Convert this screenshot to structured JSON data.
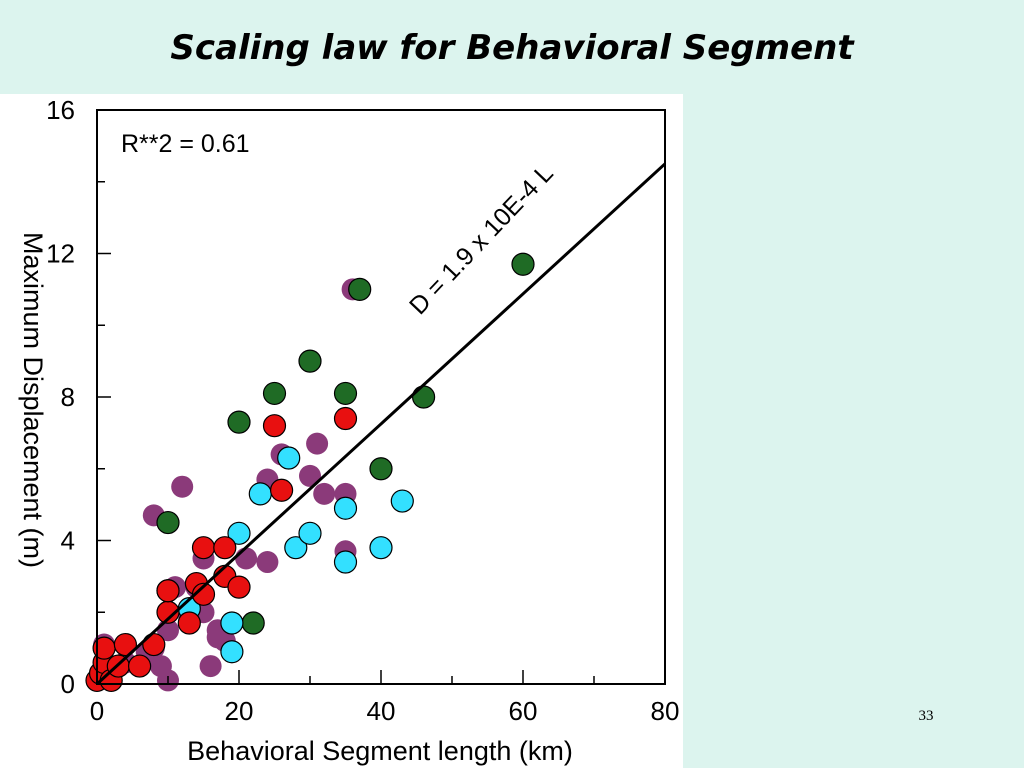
{
  "slide": {
    "title": "Scaling law for Behavioral Segment",
    "page_number": "33"
  },
  "chart_data": {
    "type": "scatter",
    "xlabel": "Behavioral Segment length (km)",
    "ylabel": "Maximum Displacement (m)",
    "xlim": [
      0,
      80
    ],
    "ylim": [
      0,
      16
    ],
    "x_ticks": [
      "0",
      "20",
      "40",
      "60",
      "80"
    ],
    "y_ticks": [
      "0",
      "4",
      "8",
      "12",
      "16"
    ],
    "grid": false,
    "annotations": {
      "r_squared": "R**2 = 0.61",
      "fit_equation": "D = 1.9 x 10E-4 L"
    },
    "fit_line": {
      "x": [
        0,
        80
      ],
      "y": [
        0,
        14.5
      ]
    },
    "series": [
      {
        "color": "#8b3a7a",
        "x": [
          1,
          2,
          4,
          7,
          8,
          9,
          10,
          10,
          11,
          12,
          13,
          14,
          15,
          16,
          17,
          18,
          21,
          24,
          24,
          26,
          30,
          31,
          32,
          35,
          35,
          36,
          10,
          13,
          15,
          17,
          8
        ],
        "y": [
          1.1,
          0.3,
          0.6,
          0.9,
          4.7,
          0.5,
          0.1,
          1.5,
          2.7,
          5.5,
          2.0,
          2.7,
          3.5,
          0.5,
          1.5,
          1.2,
          3.5,
          3.4,
          5.7,
          6.4,
          5.8,
          6.7,
          5.3,
          5.3,
          3.7,
          11.0,
          2.0,
          1.8,
          2.0,
          1.3,
          1.0
        ]
      },
      {
        "color": "#1f6b25",
        "x": [
          10,
          20,
          22,
          25,
          30,
          35,
          37,
          40,
          46,
          60
        ],
        "y": [
          4.5,
          7.3,
          1.7,
          8.1,
          9.0,
          8.1,
          11.0,
          6.0,
          8.0,
          11.7
        ]
      },
      {
        "color": "#33e0ff",
        "x": [
          13,
          19,
          19,
          20,
          23,
          27,
          28,
          30,
          35,
          35,
          40,
          43
        ],
        "y": [
          2.1,
          1.7,
          0.9,
          4.2,
          5.3,
          6.3,
          3.8,
          4.2,
          4.9,
          3.4,
          3.8,
          5.1
        ]
      },
      {
        "color": "#e81010",
        "x": [
          0,
          0.5,
          1,
          1,
          2,
          3,
          4,
          6,
          8,
          10,
          10,
          10,
          13,
          14,
          15,
          15,
          18,
          18,
          20,
          25,
          26,
          35
        ],
        "y": [
          0.1,
          0.3,
          0.6,
          1.0,
          0.1,
          0.5,
          1.1,
          0.5,
          1.1,
          2.0,
          2.6,
          2.6,
          1.7,
          2.8,
          2.5,
          3.8,
          3.0,
          3.8,
          2.7,
          7.2,
          5.4,
          7.4
        ]
      }
    ]
  }
}
